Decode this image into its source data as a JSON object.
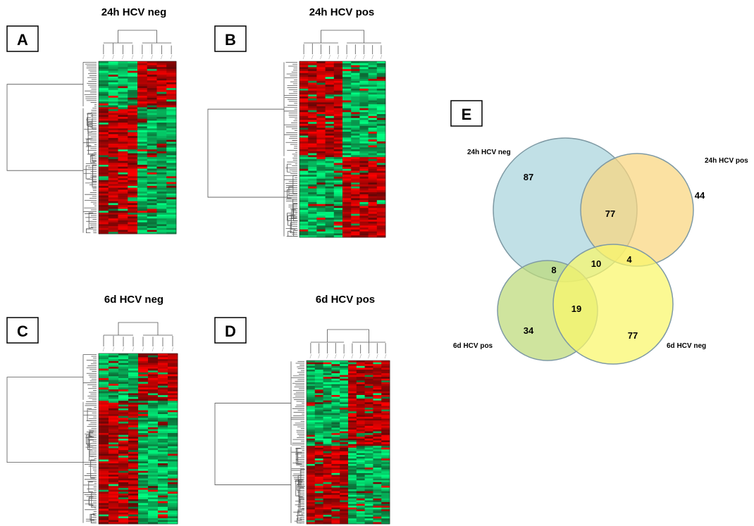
{
  "panels": [
    {
      "letter": "A",
      "title": "24h HCV neg",
      "split": 0.27,
      "left_split": 0.45,
      "top_left": "green",
      "n_cols": 8
    },
    {
      "letter": "B",
      "title": "24h HCV pos",
      "split": 0.54,
      "left_split": 0.52,
      "top_left": "red",
      "n_cols": 10
    },
    {
      "letter": "C",
      "title": "6d HCV neg",
      "split": 0.28,
      "left_split": 0.52,
      "top_left": "green",
      "n_cols": 8
    },
    {
      "letter": "D",
      "title": "6d HCV pos",
      "split": 0.52,
      "left_split": 0.52,
      "top_left": "green",
      "n_cols": 10
    }
  ],
  "venn": {
    "letter": "E",
    "colors": {
      "24h_neg": "#a9d4dc",
      "24h_pos": "#fad57e",
      "6d_pos": "#bcd978",
      "6d_neg": "#f9f66a",
      "outline": "#7f9aa4"
    },
    "sets": [
      {
        "label": "24h HCV neg"
      },
      {
        "label": "24h HCV pos"
      },
      {
        "label": "6d HCV pos"
      },
      {
        "label": "6d HCV neg"
      }
    ],
    "counts": {
      "only_24h_neg": "87",
      "only_24h_pos": "44",
      "neg24_pos24": "77",
      "neg24_neg6": "10",
      "pos24_neg6": "4",
      "neg24_pos6": "8",
      "pos6_neg6": "19",
      "only_6d_pos": "34",
      "only_6d_neg": "77"
    }
  }
}
